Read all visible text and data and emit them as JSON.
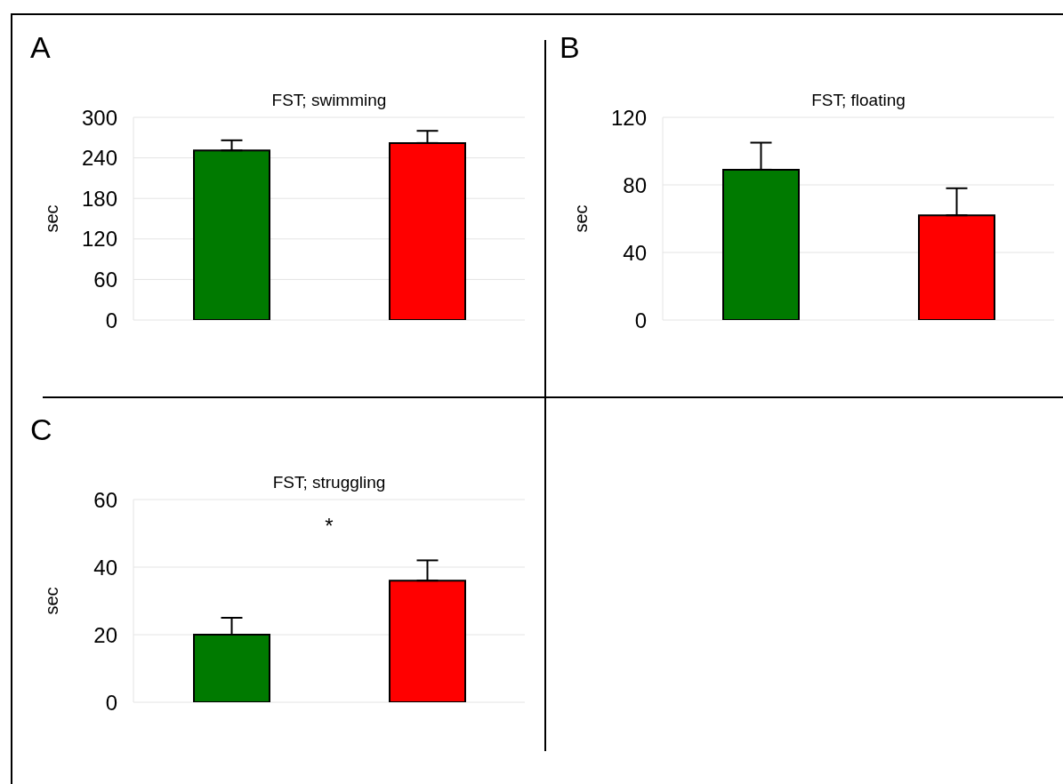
{
  "chart_data": [
    {
      "type": "bar",
      "title": "FST; swimming",
      "ylabel": "sec",
      "annotations": [
        "A"
      ],
      "categories": [
        null,
        null
      ],
      "values": [
        251,
        262
      ],
      "errors": [
        15,
        18
      ],
      "colors": [
        "#007a00",
        "#ff0000"
      ],
      "ylim": [
        0,
        300
      ],
      "yticks": [
        0,
        60,
        120,
        180,
        240,
        300
      ],
      "grid": "y",
      "tick_labels": "y"
    },
    {
      "type": "bar",
      "title": "FST; floating",
      "ylabel": "sec",
      "annotations": [
        "B"
      ],
      "categories": [
        null,
        null
      ],
      "values": [
        89,
        62
      ],
      "errors": [
        16,
        16
      ],
      "colors": [
        "#007a00",
        "#ff0000"
      ],
      "ylim": [
        0,
        120
      ],
      "yticks": [
        0,
        40,
        80,
        120
      ],
      "grid": "y",
      "tick_labels": "y"
    },
    {
      "type": "bar",
      "title": "FST; struggling",
      "ylabel": "sec",
      "annotations": [
        "C",
        "*"
      ],
      "categories": [
        null,
        null
      ],
      "values": [
        20,
        36
      ],
      "errors": [
        5,
        6
      ],
      "colors": [
        "#007a00",
        "#ff0000"
      ],
      "ylim": [
        0,
        60
      ],
      "yticks": [
        0,
        20,
        40,
        60
      ],
      "grid": "y",
      "tick_labels": "y"
    }
  ]
}
